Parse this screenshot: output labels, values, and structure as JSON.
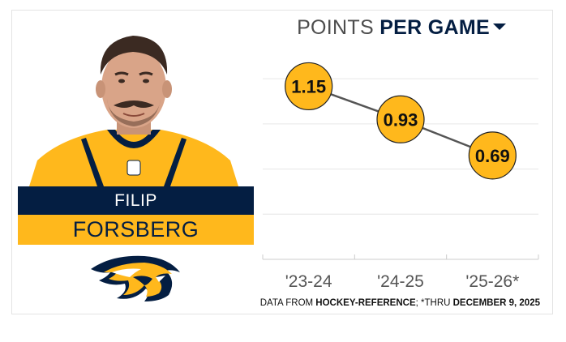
{
  "player": {
    "first_name": "FILIP",
    "last_name": "FORSBERG"
  },
  "title": {
    "light": "POINTS",
    "bold": "PER GAME"
  },
  "source": {
    "prefix": "DATA FROM ",
    "site": "HOCKEY-REFERENCE",
    "middle": "; *THRU ",
    "date": "DECEMBER 9, 2025"
  },
  "colors": {
    "navy": "#041e42",
    "gold": "#ffb81c",
    "line": "#555555",
    "grid": "#e6e6e6"
  },
  "chart_data": {
    "type": "line",
    "categories": [
      "'23-24",
      "'24-25",
      "'25-26*"
    ],
    "series": [
      {
        "values": [
          1.15,
          0.93,
          0.69
        ]
      }
    ],
    "value_labels": [
      "1.15",
      "0.93",
      "0.69"
    ],
    "ylim": [
      0,
      1.4
    ],
    "grid": true,
    "xlabel": "",
    "ylabel": ""
  }
}
